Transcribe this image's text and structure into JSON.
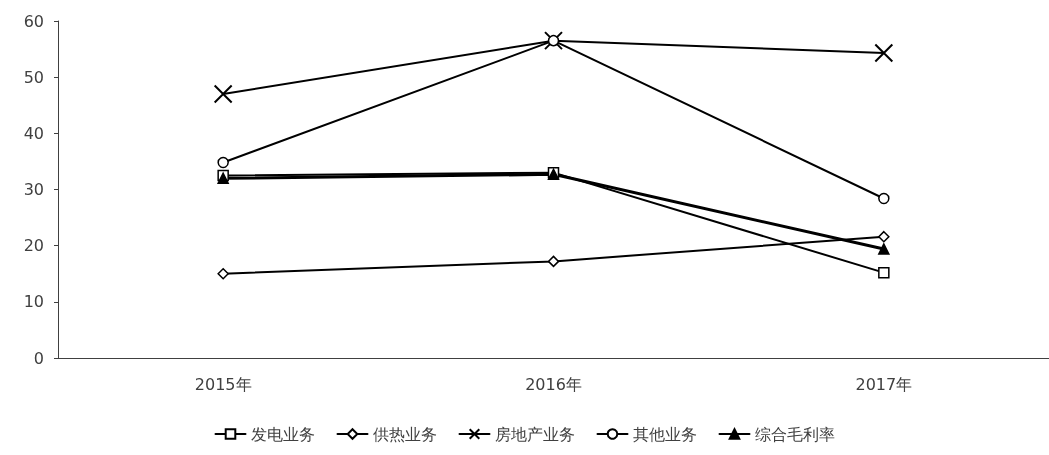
{
  "chart_data": {
    "type": "line",
    "categories": [
      "2015年",
      "2016年",
      "2017年"
    ],
    "series": [
      {
        "name": "发电业务",
        "color": "#000000",
        "marker": "square",
        "values": [
          32.5,
          33,
          15.2
        ]
      },
      {
        "name": "供热业务",
        "color": "#000000",
        "marker": "diamond",
        "values": [
          15,
          17.2,
          21.6
        ]
      },
      {
        "name": "房地产业务",
        "color": "#000000",
        "marker": "cross",
        "values": [
          47,
          56.5,
          54.3
        ]
      },
      {
        "name": "其他业务",
        "color": "#000000",
        "marker": "circle",
        "values": [
          34.8,
          56.5,
          28.4
        ]
      },
      {
        "name": "综合毛利率",
        "color": "#000000",
        "marker": "triangle",
        "values": [
          32,
          32.7,
          19.4
        ]
      }
    ],
    "ylim": [
      0,
      60
    ],
    "yticks": [
      0,
      10,
      20,
      30,
      40,
      50,
      60
    ],
    "grid": false,
    "legend": "bottom"
  }
}
